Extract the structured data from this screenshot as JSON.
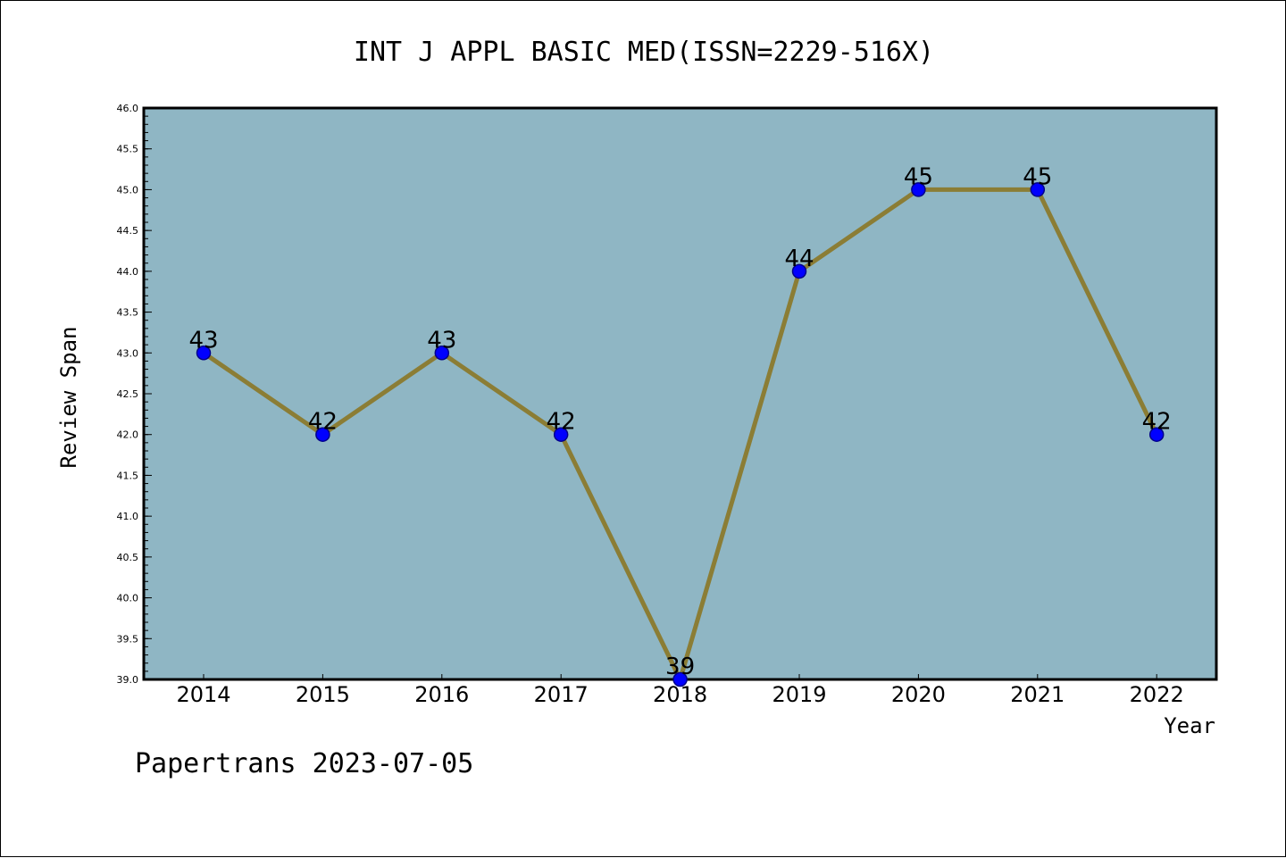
{
  "colors": {
    "plot_background": "#8fb6c4",
    "line": "#8b7d35",
    "marker_fill": "#0000ff",
    "marker_edge": "#00008b"
  },
  "chart_data": {
    "type": "line",
    "title": "INT J APPL BASIC MED(ISSN=2229-516X)",
    "xlabel": "Year",
    "ylabel": "Review Span",
    "categories": [
      "2014",
      "2015",
      "2016",
      "2017",
      "2018",
      "2019",
      "2020",
      "2021",
      "2022"
    ],
    "series": [
      {
        "values": [
          43,
          42,
          43,
          42,
          39,
          44,
          45,
          45,
          42
        ]
      }
    ],
    "data_labels": [
      "43",
      "42",
      "43",
      "42",
      "39",
      "44",
      "45",
      "45",
      "42"
    ],
    "ylim": [
      39.0,
      46.0
    ],
    "yticks": [
      "39.0",
      "39.5",
      "40.0",
      "40.5",
      "41.0",
      "41.5",
      "42.0",
      "42.5",
      "43.0",
      "43.5",
      "44.0",
      "44.5",
      "45.0",
      "45.5",
      "46.0"
    ],
    "grid": false,
    "legend": "none"
  },
  "footer": {
    "text": "Papertrans 2023-07-05"
  }
}
